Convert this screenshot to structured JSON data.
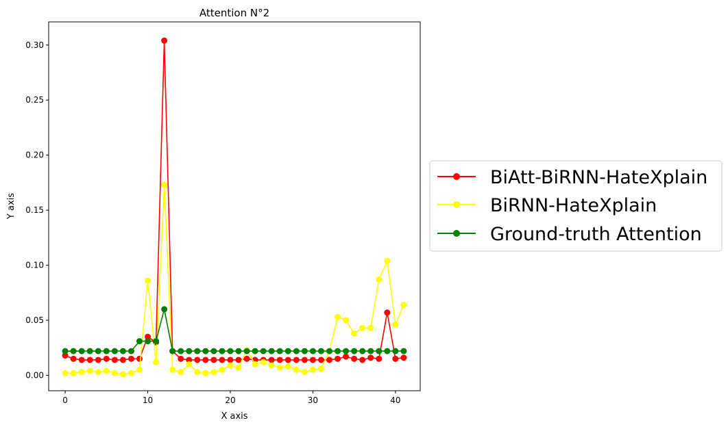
{
  "chart_data": {
    "type": "line",
    "title": "Attention N°2",
    "xlabel": "X axis",
    "ylabel": "Y axis",
    "xlim": [
      -2,
      43
    ],
    "ylim": [
      -0.014,
      0.321
    ],
    "xticks": [
      0,
      10,
      20,
      30,
      40
    ],
    "xtick_labels": [
      "0",
      "10",
      "20",
      "30",
      "40"
    ],
    "yticks": [
      0.0,
      0.05,
      0.1,
      0.15,
      0.2,
      0.25,
      0.3
    ],
    "ytick_labels": [
      "0.00",
      "0.05",
      "0.10",
      "0.15",
      "0.20",
      "0.25",
      "0.30"
    ],
    "grid": false,
    "legend_position": "center-right outside",
    "x": [
      0,
      1,
      2,
      3,
      4,
      5,
      6,
      7,
      8,
      9,
      10,
      11,
      12,
      13,
      14,
      15,
      16,
      17,
      18,
      19,
      20,
      21,
      22,
      23,
      24,
      25,
      26,
      27,
      28,
      29,
      30,
      31,
      32,
      33,
      34,
      35,
      36,
      37,
      38,
      39,
      40,
      41
    ],
    "series": [
      {
        "name": "BiAtt-BiRNN-HateXplain",
        "color": "#ff0000",
        "values": [
          0.018,
          0.015,
          0.014,
          0.014,
          0.014,
          0.015,
          0.014,
          0.014,
          0.015,
          0.015,
          0.035,
          0.03,
          0.304,
          0.022,
          0.015,
          0.014,
          0.014,
          0.014,
          0.014,
          0.014,
          0.014,
          0.014,
          0.015,
          0.014,
          0.014,
          0.014,
          0.014,
          0.014,
          0.014,
          0.014,
          0.014,
          0.014,
          0.014,
          0.015,
          0.017,
          0.015,
          0.014,
          0.016,
          0.015,
          0.057,
          0.015,
          0.016
        ]
      },
      {
        "name": "BiRNN-HateXplain",
        "color": "#ffff00",
        "values": [
          0.002,
          0.002,
          0.003,
          0.004,
          0.003,
          0.004,
          0.002,
          0.001,
          0.002,
          0.005,
          0.086,
          0.012,
          0.173,
          0.005,
          0.003,
          0.01,
          0.003,
          0.002,
          0.003,
          0.005,
          0.009,
          0.007,
          0.023,
          0.01,
          0.012,
          0.009,
          0.007,
          0.008,
          0.005,
          0.003,
          0.005,
          0.006,
          0.022,
          0.053,
          0.05,
          0.038,
          0.043,
          0.043,
          0.087,
          0.104,
          0.046,
          0.064
        ]
      },
      {
        "name": "Ground-truth Attention",
        "color": "#008000",
        "values": [
          0.022,
          0.022,
          0.022,
          0.022,
          0.022,
          0.022,
          0.022,
          0.022,
          0.022,
          0.031,
          0.031,
          0.031,
          0.06,
          0.022,
          0.022,
          0.022,
          0.022,
          0.022,
          0.022,
          0.022,
          0.022,
          0.022,
          0.022,
          0.022,
          0.022,
          0.022,
          0.022,
          0.022,
          0.022,
          0.022,
          0.022,
          0.022,
          0.022,
          0.022,
          0.022,
          0.022,
          0.022,
          0.022,
          0.022,
          0.022,
          0.022,
          0.022
        ]
      }
    ]
  }
}
